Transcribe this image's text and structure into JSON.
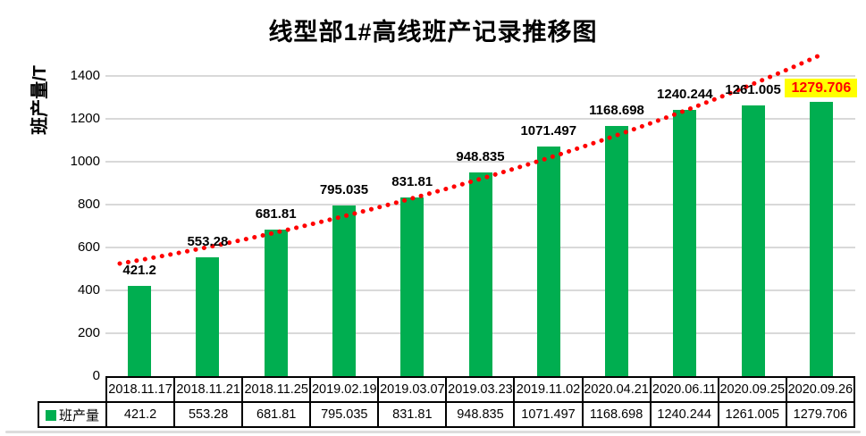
{
  "chart_data": {
    "type": "bar",
    "title": "线型部1#高线班产记录推移图",
    "ylabel": "班产量/T",
    "xlabel": "",
    "categories": [
      "2018.11.17",
      "2018.11.21",
      "2018.11.25",
      "2019.02.19",
      "2019.03.07",
      "2019.03.23",
      "2019.11.02",
      "2020.04.21",
      "2020.06.11",
      "2020.09.25",
      "2020.09.26"
    ],
    "series": [
      {
        "name": "班产量",
        "values": [
          421.2,
          553.28,
          681.81,
          795.035,
          831.81,
          948.835,
          1071.497,
          1168.698,
          1240.244,
          1261.005,
          1279.706
        ]
      }
    ],
    "data_labels": [
      "421.2",
      "553.28",
      "681.81",
      "795.035",
      "831.81",
      "948.835",
      "1071.497",
      "1168.698",
      "1240.244",
      "1261.005",
      "1279.706"
    ],
    "highlighted_point": {
      "category": "2020.09.26",
      "label": "1279.706"
    },
    "y_ticks": [
      0,
      200,
      400,
      600,
      800,
      1000,
      1200,
      1400
    ],
    "ylim": [
      0,
      1525
    ],
    "grid": "horizontal",
    "legend_position": "table-left",
    "trendline": {
      "type": "exponential",
      "style": "dotted"
    }
  },
  "style": {
    "bar_color": "#00AE50",
    "trend_color": "#FF0000",
    "gridline_color": "#D9D9D9",
    "label_color": "#000000",
    "highlight_bg": "#FFFF00",
    "highlight_text": "#FF0000"
  }
}
